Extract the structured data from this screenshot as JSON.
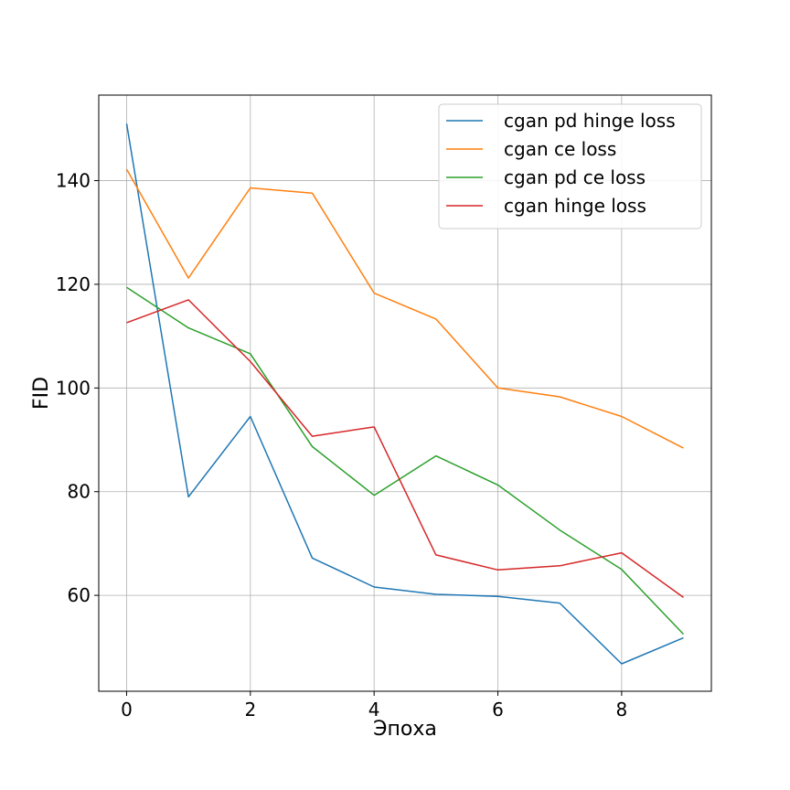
{
  "chart_data": {
    "type": "line",
    "title": "",
    "xlabel": "Эпоха",
    "ylabel": "FID",
    "xlim": [
      -0.45,
      9.45
    ],
    "ylim": [
      41.5,
      156.5
    ],
    "xticks": [
      0,
      2,
      4,
      6,
      8
    ],
    "yticks": [
      60,
      80,
      100,
      120,
      140
    ],
    "grid": true,
    "legend_position": "top-right",
    "x": [
      0,
      1,
      2,
      3,
      4,
      5,
      6,
      7,
      8,
      9
    ],
    "series": [
      {
        "name": "cgan pd hinge loss",
        "color": "#1f77b4",
        "values": [
          151,
          79,
          94.5,
          67.2,
          61.6,
          60.2,
          59.8,
          58.5,
          46.8,
          51.8
        ]
      },
      {
        "name": "cgan ce loss",
        "color": "#ff7f0e",
        "values": [
          142.2,
          121.2,
          138.6,
          137.6,
          118.3,
          113.3,
          100,
          98.3,
          94.5,
          88.4
        ]
      },
      {
        "name": "cgan pd ce loss",
        "color": "#2ca02c",
        "values": [
          119.4,
          111.6,
          106.6,
          88.7,
          79.3,
          86.9,
          81.3,
          72.6,
          65,
          52.5
        ]
      },
      {
        "name": "cgan hinge loss",
        "color": "#d62728",
        "values": [
          112.6,
          117,
          105.1,
          90.7,
          92.5,
          67.8,
          64.9,
          65.7,
          68.2,
          59.6
        ]
      }
    ]
  }
}
